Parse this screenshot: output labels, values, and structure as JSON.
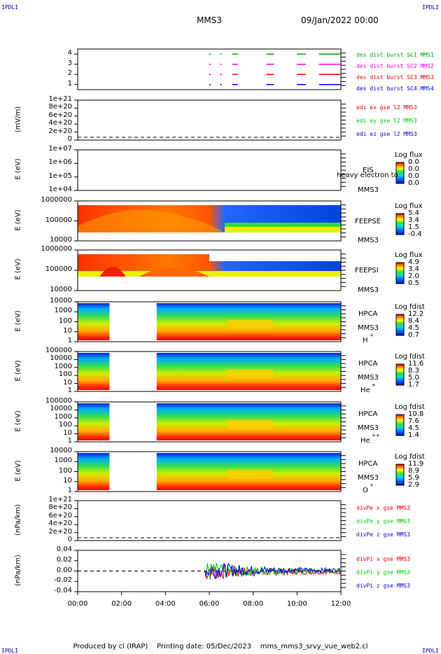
{
  "corners": {
    "tl": "IPDLI",
    "tr": "IPDLI",
    "bl": "IPDLI",
    "br": "IPDLI"
  },
  "header": {
    "spacecraft": "MMS3",
    "date_time": "09/Jan/2022 00:00"
  },
  "footer": {
    "produced_by": "Produced by cl (IRAP)",
    "printing_date": "Printing date: 05/Dec/2023",
    "script": "mms_mms3_srvy_vue_web2.cl"
  },
  "time_axis": {
    "ticks": [
      "00:00",
      "02:00",
      "04:00",
      "06:00",
      "08:00",
      "10:00",
      "12:00"
    ],
    "range_hours": [
      0,
      12
    ]
  },
  "colors": {
    "mms1": "#00aa00",
    "mms2": "#ee00ee",
    "mms3": "#ee0000",
    "mms4": "#0000ee",
    "x": "#ee0000",
    "y": "#00cc00",
    "z": "#0000ee"
  },
  "chart_data": [
    {
      "type": "scatter",
      "panel": "burst",
      "yticks": [
        "1",
        "2",
        "3",
        "4"
      ],
      "series": [
        {
          "name": "des dist burst SC1 MMS1",
          "level": 4,
          "color": "#00aa00"
        },
        {
          "name": "des dist burst SC2 MMS2",
          "level": 3,
          "color": "#ee00ee"
        },
        {
          "name": "des dist burst SC3 MMS3",
          "level": 2,
          "color": "#ee0000"
        },
        {
          "name": "des dist burst SC4 MMS4",
          "level": 1,
          "color": "#0000ee"
        }
      ],
      "intervals_hours": [
        [
          6.0,
          6.05
        ],
        [
          6.5,
          6.55
        ],
        [
          7.05,
          7.3
        ],
        [
          8.6,
          8.95
        ],
        [
          10.0,
          10.4
        ],
        [
          11.0,
          12.0
        ]
      ]
    },
    {
      "type": "line",
      "panel": "edi",
      "ylabel": "(mV/m)",
      "yticks": [
        "0",
        "2e+20",
        "4e+20",
        "6e+20",
        "8e+20",
        "1e+21"
      ],
      "series": [
        {
          "name": "edi ex gse l2 MMS3",
          "color": "#ee0000"
        },
        {
          "name": "edi ey gse l2 MMS3",
          "color": "#00cc00"
        },
        {
          "name": "edi ez gse l2 MMS3",
          "color": "#0000ee"
        }
      ]
    },
    {
      "type": "heatmap",
      "panel": "eis",
      "ylabel": "E (eV)",
      "yticks": [
        "1e+04",
        "1e+05",
        "1e+06",
        "1e+07"
      ],
      "labels": [
        "EIS",
        "heavy electron to",
        "MMS3"
      ],
      "colorbar": {
        "title": "Log flux",
        "ticks": [
          "0.0",
          "0.0",
          "0.0",
          "0.0"
        ]
      }
    },
    {
      "type": "heatmap",
      "panel": "feepse",
      "ylabel": "E (eV)",
      "yticks": [
        "10000",
        "100000",
        "1000000"
      ],
      "labels": [
        "FEEPSE",
        "MMS3"
      ],
      "colorbar": {
        "title": "Log flux",
        "ticks": [
          "5.4",
          "3.4",
          "1.5",
          "-0.4"
        ]
      }
    },
    {
      "type": "heatmap",
      "panel": "feepsi",
      "ylabel": "E (eV)",
      "yticks": [
        "10000",
        "100000",
        "1000000"
      ],
      "labels": [
        "FEEPSI",
        "MMS3"
      ],
      "colorbar": {
        "title": "Log flux",
        "ticks": [
          "4.9",
          "3.4",
          "2.0",
          "0.5"
        ]
      }
    },
    {
      "type": "heatmap",
      "panel": "hpca_h",
      "ylabel": "E (eV)",
      "yticks": [
        "1",
        "10",
        "100",
        "1000",
        "10000"
      ],
      "labels": [
        "HPCA",
        "MMS3",
        "H",
        "+"
      ],
      "colorbar": {
        "title": "Log fdist",
        "ticks": [
          "12.2",
          "8.4",
          "4.5",
          "0.7"
        ]
      }
    },
    {
      "type": "heatmap",
      "panel": "hpca_he",
      "ylabel": "E (eV)",
      "yticks": [
        "1",
        "10",
        "100",
        "1000",
        "10000",
        "100000"
      ],
      "labels": [
        "HPCA",
        "MMS3",
        "He",
        "+"
      ],
      "colorbar": {
        "title": "Log fdist",
        "ticks": [
          "11.6",
          "8.3",
          "5.0",
          "1.7"
        ]
      }
    },
    {
      "type": "heatmap",
      "panel": "hpca_hepp",
      "ylabel": "E (eV)",
      "yticks": [
        "1",
        "10",
        "100",
        "1000",
        "10000",
        "100000"
      ],
      "labels": [
        "HPCA",
        "MMS3",
        "He",
        "++"
      ],
      "colorbar": {
        "title": "Log fdist",
        "ticks": [
          "10.8",
          "7.6",
          "4.5",
          "1.4"
        ]
      }
    },
    {
      "type": "heatmap",
      "panel": "hpca_o",
      "ylabel": "E (eV)",
      "yticks": [
        "1",
        "10",
        "100",
        "1000",
        "10000"
      ],
      "labels": [
        "HPCA",
        "MMS3",
        "O",
        "+"
      ],
      "colorbar": {
        "title": "Log fdist",
        "ticks": [
          "11.9",
          "8.9",
          "5.9",
          "2.9"
        ]
      }
    },
    {
      "type": "line",
      "panel": "divpe",
      "ylabel": "(nPa/km)",
      "yticks": [
        "0",
        "2e+20",
        "4e+20",
        "6e+20",
        "8e+20",
        "1e+21"
      ],
      "series": [
        {
          "name": "divPe x gse MMS3",
          "color": "#ee0000"
        },
        {
          "name": "divPe y gse MMS3",
          "color": "#00cc00"
        },
        {
          "name": "divPe z gse MMS3",
          "color": "#0000ee"
        }
      ]
    },
    {
      "type": "line",
      "panel": "divpi",
      "ylabel": "(nPa/km)",
      "yticks": [
        "-0.04",
        "-0.02",
        "0.00",
        "0.02",
        "0.04"
      ],
      "ylim": [
        -0.05,
        0.05
      ],
      "data_start_hours": 5.8,
      "series": [
        {
          "name": "divPi x gse MMS3",
          "color": "#ee0000"
        },
        {
          "name": "divPi y gse MMS3",
          "color": "#00cc00"
        },
        {
          "name": "divPi z gse MMS3",
          "color": "#0000ee"
        }
      ]
    }
  ]
}
